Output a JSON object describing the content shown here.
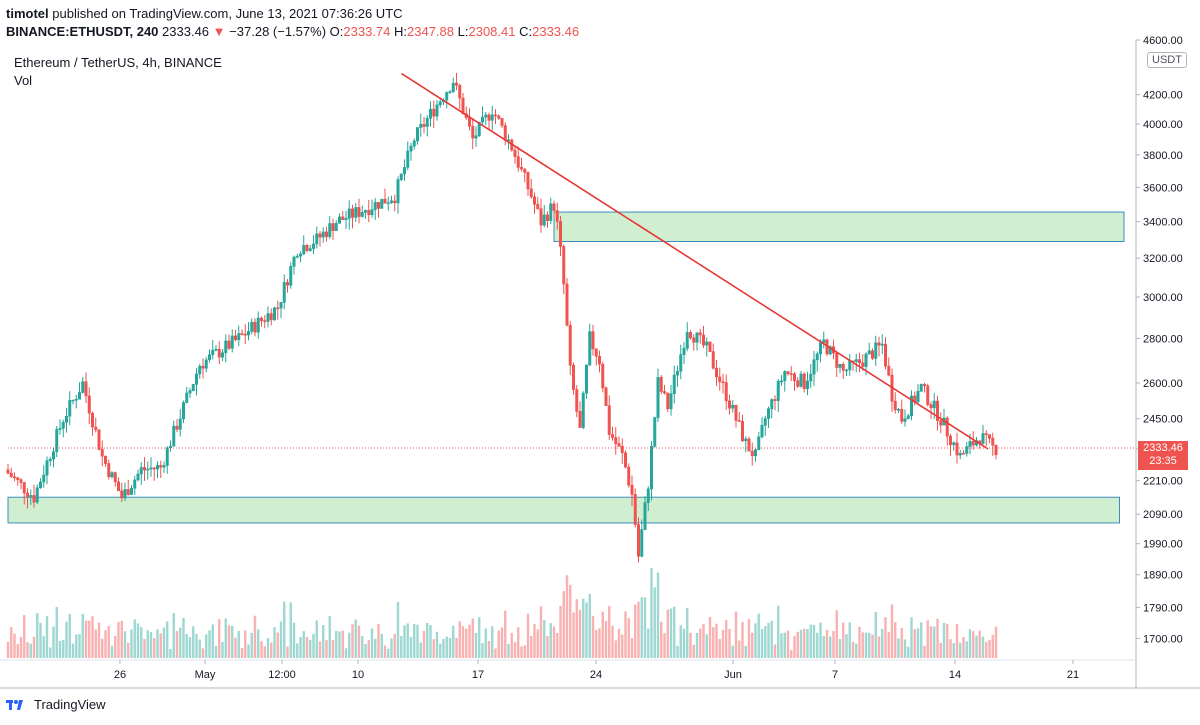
{
  "header": {
    "publisher": "timotel",
    "published_text": "published on TradingView.com, June 13, 2021 07:36:26 UTC",
    "symbol": "BINANCE:ETHUSDT, 240",
    "last": "2333.46",
    "change": "−37.28 (−1.57%)",
    "o_label": "O:",
    "o_value": "2333.74",
    "h_label": "H:",
    "h_value": "2347.88",
    "l_label": "L:",
    "l_value": "2308.41",
    "c_label": "C:",
    "c_value": "2333.46"
  },
  "instrument_title": "Ethereum / TetherUS, 4h, BINANCE",
  "volume_label": "Vol",
  "currency_unit": "USDT",
  "last_price_label": {
    "price": "2333.46",
    "countdown": "23:35"
  },
  "footer": {
    "brand": "TradingView"
  },
  "colors": {
    "up": "#26a69a",
    "down": "#ef5350",
    "candle_body_up": "#ffffff",
    "trendline": "#e53935",
    "zone_fill": "#c8ecc9",
    "zone_border": "#3c8dbc"
  },
  "chart_data": {
    "type": "candlestick",
    "y_scale": "log",
    "ylim": [
      1640,
      4600
    ],
    "y_ticks": [
      "4600.00",
      "4200.00",
      "4000.00",
      "3800.00",
      "3600.00",
      "3400.00",
      "3200.00",
      "3000.00",
      "2800.00",
      "2600.00",
      "2450.00",
      "2330.00",
      "2210.00",
      "2090.00",
      "1990.00",
      "1890.00",
      "1790.00",
      "1700.00"
    ],
    "x_ticks": [
      "26",
      "May",
      "12:00",
      "10",
      "17",
      "24",
      "Jun",
      "7",
      "14",
      "21"
    ],
    "price_path": [
      {
        "d": 0,
        "p": 2250
      },
      {
        "d": 1.5,
        "p": 2150
      },
      {
        "d": 3,
        "p": 2450
      },
      {
        "d": 4,
        "p": 2600
      },
      {
        "d": 5,
        "p": 2300
      },
      {
        "d": 6,
        "p": 2150
      },
      {
        "d": 7,
        "p": 2250
      },
      {
        "d": 8,
        "p": 2260
      },
      {
        "d": 10,
        "p": 2680
      },
      {
        "d": 12,
        "p": 2800
      },
      {
        "d": 14,
        "p": 2950
      },
      {
        "d": 15,
        "p": 3250
      },
      {
        "d": 16,
        "p": 3300
      },
      {
        "d": 17,
        "p": 3400
      },
      {
        "d": 18,
        "p": 3450
      },
      {
        "d": 20,
        "p": 3550
      },
      {
        "d": 21,
        "p": 3900
      },
      {
        "d": 22,
        "p": 4100
      },
      {
        "d": 23,
        "p": 4300
      },
      {
        "d": 24,
        "p": 3900
      },
      {
        "d": 25,
        "p": 4100
      },
      {
        "d": 26,
        "p": 3850
      },
      {
        "d": 27,
        "p": 3550
      },
      {
        "d": 27.5,
        "p": 3400
      },
      {
        "d": 28.2,
        "p": 3500
      },
      {
        "d": 28.6,
        "p": 3150
      },
      {
        "d": 29,
        "p": 2650
      },
      {
        "d": 29.5,
        "p": 2400
      },
      {
        "d": 30,
        "p": 2800
      },
      {
        "d": 30.5,
        "p": 2700
      },
      {
        "d": 31,
        "p": 2400
      },
      {
        "d": 31.7,
        "p": 2300
      },
      {
        "d": 32.2,
        "p": 2150
      },
      {
        "d": 32.5,
        "p": 1950
      },
      {
        "d": 33,
        "p": 2200
      },
      {
        "d": 33.5,
        "p": 2600
      },
      {
        "d": 34,
        "p": 2500
      },
      {
        "d": 35,
        "p": 2850
      },
      {
        "d": 36,
        "p": 2750
      },
      {
        "d": 37,
        "p": 2550
      },
      {
        "d": 38,
        "p": 2350
      },
      {
        "d": 38.5,
        "p": 2300
      },
      {
        "d": 39,
        "p": 2450
      },
      {
        "d": 40,
        "p": 2650
      },
      {
        "d": 41,
        "p": 2600
      },
      {
        "d": 42,
        "p": 2780
      },
      {
        "d": 43,
        "p": 2650
      },
      {
        "d": 44,
        "p": 2700
      },
      {
        "d": 45,
        "p": 2770
      },
      {
        "d": 45.5,
        "p": 2550
      },
      {
        "d": 46,
        "p": 2450
      },
      {
        "d": 47,
        "p": 2580
      },
      {
        "d": 48,
        "p": 2450
      },
      {
        "d": 49,
        "p": 2300
      },
      {
        "d": 50,
        "p": 2380
      },
      {
        "d": 50.7,
        "p": 2333
      }
    ],
    "trendline": [
      {
        "d": 23,
        "p": 4350
      },
      {
        "d": 54,
        "p": 2330
      }
    ],
    "zones": [
      {
        "from_day": 28,
        "to_day": 60,
        "low": 3290,
        "high": 3455
      },
      {
        "from_day": 0,
        "to_day": 57,
        "low": 2060,
        "high": 2150
      }
    ],
    "last_price": 2333.46
  }
}
